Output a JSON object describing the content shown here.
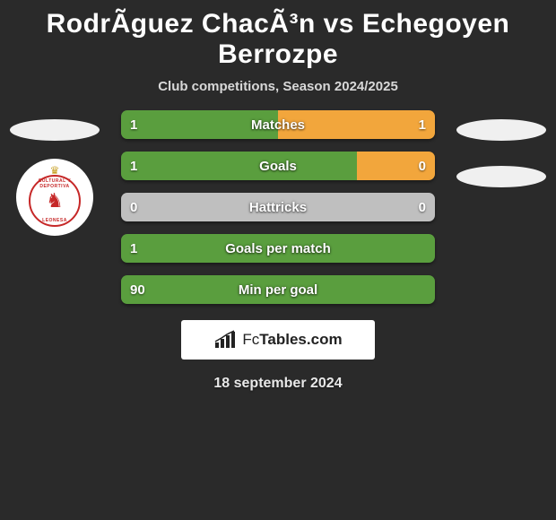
{
  "title": "RodrÃ­guez ChacÃ³n vs Echegoyen Berrozpe",
  "subtitle": "Club competitions, Season 2024/2025",
  "colors": {
    "left_bar": "#5a9e3e",
    "right_bar": "#f2a63c",
    "neutral_bar": "#bfbfbf",
    "background": "#2a2a2a",
    "badge_placeholder": "#f0f0f0",
    "footer_bg": "#ffffff",
    "footer_text": "#222222"
  },
  "left_player": {
    "club_ring_top": "CULTURAL Y DEPORTIVA",
    "club_ring_bottom": "LEONESA"
  },
  "stats": [
    {
      "label": "Matches",
      "left_val": "1",
      "right_val": "1",
      "left_pct": 50,
      "right_pct": 50,
      "left_color": "#5a9e3e",
      "right_color": "#f2a63c"
    },
    {
      "label": "Goals",
      "left_val": "1",
      "right_val": "0",
      "left_pct": 75,
      "right_pct": 25,
      "left_color": "#5a9e3e",
      "right_color": "#f2a63c"
    },
    {
      "label": "Hattricks",
      "left_val": "0",
      "right_val": "0",
      "left_pct": 100,
      "right_pct": 0,
      "left_color": "#bfbfbf",
      "right_color": "#bfbfbf"
    },
    {
      "label": "Goals per match",
      "left_val": "1",
      "right_val": "",
      "left_pct": 100,
      "right_pct": 0,
      "left_color": "#5a9e3e",
      "right_color": "#5a9e3e"
    },
    {
      "label": "Min per goal",
      "left_val": "90",
      "right_val": "",
      "left_pct": 100,
      "right_pct": 0,
      "left_color": "#5a9e3e",
      "right_color": "#5a9e3e"
    }
  ],
  "footer": {
    "brand_prefix": "Fc",
    "brand_suffix": "Tables.com"
  },
  "date": "18 september 2024"
}
